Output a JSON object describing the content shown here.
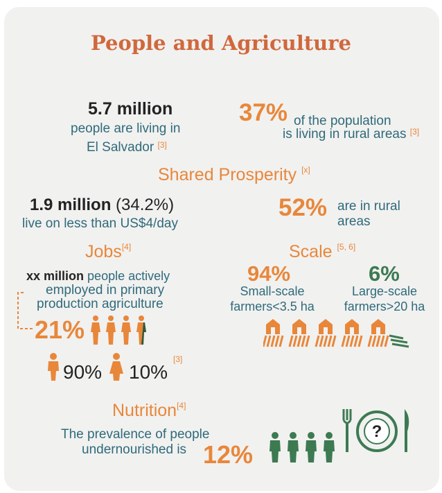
{
  "title": "People and Agriculture",
  "population": {
    "value": "5.7 million",
    "line1": "people are living in",
    "line2": "El Salvador",
    "ref": "[3]"
  },
  "rural": {
    "percent": "37%",
    "line1": "of the population",
    "line2": "is living in rural areas",
    "ref": "[3]"
  },
  "shared_prosperity": {
    "heading": "Shared Prosperity",
    "ref": "[x]",
    "poverty_value": "1.9 million",
    "poverty_pct": "(34.2%)",
    "poverty_line": "live on less than US$4/day",
    "rural_pct": "52%",
    "rural_line1": "are in rural",
    "rural_line2": "areas"
  },
  "jobs": {
    "heading": "Jobs",
    "ref": "[4]",
    "value": "xx million",
    "line1": "people actively",
    "line2": "employed in primary",
    "line3": "production agriculture",
    "pct": "21%",
    "male_pct": "90%",
    "female_pct": "10%",
    "gender_ref": "[3]"
  },
  "scale": {
    "heading": "Scale",
    "ref": "[5, 6]",
    "small_pct": "94%",
    "small_line1": "Small-scale",
    "small_line2": "farmers<3.5 ha",
    "large_pct": "6%",
    "large_line1": "Large-scale",
    "large_line2": "farmers>20 ha"
  },
  "nutrition": {
    "heading": "Nutrition",
    "ref": "[4]",
    "line1": "The prevalence of people",
    "line2": "undernourished is",
    "pct": "12%",
    "plate_symbol": "?"
  },
  "colors": {
    "orange": "#e8873a",
    "teal": "#2f6a7a",
    "green": "#3d7a52",
    "title": "#d0683c"
  },
  "icons": [
    "person-icon",
    "farm-icon",
    "fork-icon",
    "knife-icon",
    "plate-icon",
    "male-icon",
    "female-icon"
  ]
}
